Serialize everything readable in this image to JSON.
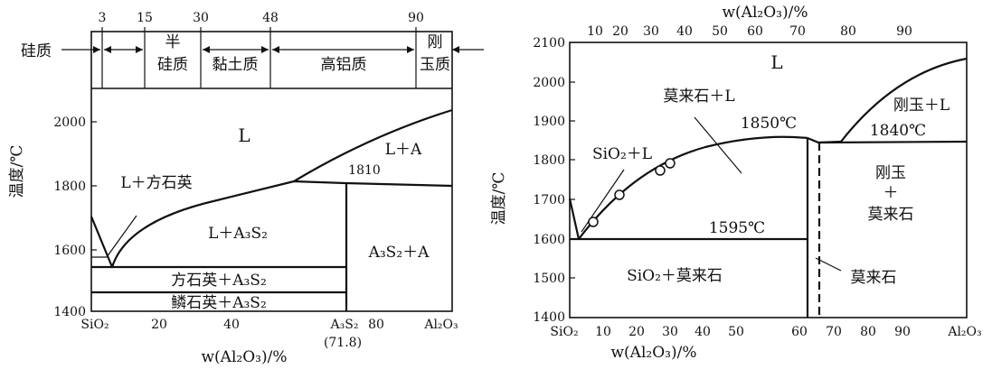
{
  "left": {
    "top_ticks": [
      "3",
      "15",
      "30",
      "48",
      "90"
    ],
    "zones": {
      "siliceous": "硅质",
      "semi1": "半",
      "semi2": "硅质",
      "clay": "黏土质",
      "high_al": "高铝质",
      "corundum1": "刚",
      "corundum2": "玉质"
    },
    "y_axis_label": "温度/℃",
    "y_ticks": [
      "2000",
      "1800",
      "1600",
      "1400"
    ],
    "x_ticks": [
      "SiO₂",
      "20",
      "40",
      "A₃S₂",
      "80",
      "Al₂O₃"
    ],
    "x_sub": "(71.8)",
    "x_axis_label": "w(Al₂O₃)/%",
    "regions": {
      "L": "L",
      "L_A": "L＋A",
      "t1810": "1810",
      "L_cris": "L＋方石英",
      "L_A3S2": "L＋A₃S₂",
      "A3S2_A": "A₃S₂＋A",
      "cris_A3S2": "方石英＋A₃S₂",
      "trid_A3S2": "鳞石英＋A₃S₂"
    }
  },
  "right": {
    "top_axis_label": "w(Al₂O₃)/%",
    "top_ticks": [
      "10",
      "20",
      "30",
      "40",
      "50",
      "60",
      "70",
      "80",
      "90"
    ],
    "y_axis_label": "温度/℃",
    "y_ticks": [
      "2100",
      "2000",
      "1900",
      "1800",
      "1700",
      "1600",
      "1500",
      "1400"
    ],
    "x_ticks": [
      "SiO₂",
      "10",
      "20",
      "30",
      "40",
      "50",
      "60",
      "70",
      "80",
      "90",
      "Al₂O₃"
    ],
    "x_axis_label": "w(Al₂O₃)/%",
    "regions": {
      "L": "L",
      "mullite_L": "莫来石＋L",
      "t1850": "1850℃",
      "corundum_L": "刚玉＋L",
      "t1840": "1840℃",
      "SiO2_L": "SiO₂＋L",
      "corundum": "刚玉",
      "plus": "＋",
      "mullite": "莫来石",
      "t1595": "1595℃",
      "SiO2_mullite": "SiO₂＋莫来石",
      "mullite_callout": "莫来石"
    }
  }
}
